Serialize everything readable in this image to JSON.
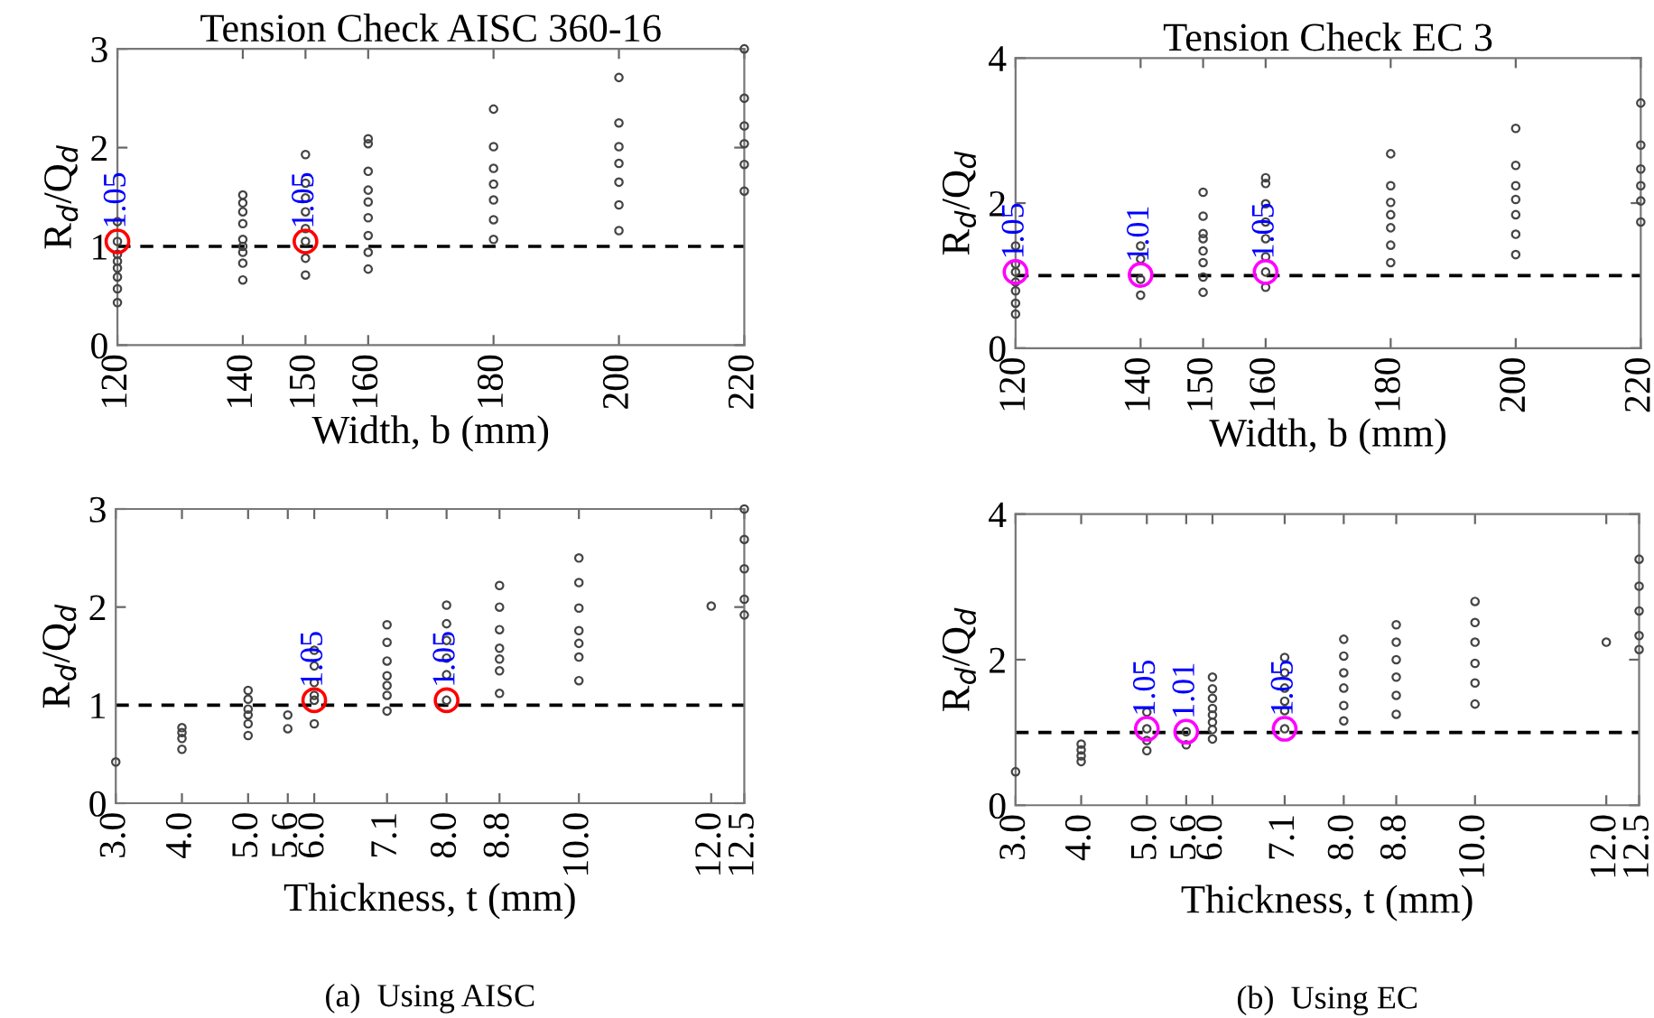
{
  "chart_data": [
    {
      "type": "scatter",
      "title": "Tension Check AISC 360-16",
      "xlabel": "Width, b (mm)",
      "ylabel": "R$_{d}$/Q$_{d}$",
      "xlim": [
        120,
        220
      ],
      "xticks": [
        120,
        140,
        150,
        160,
        180,
        200,
        220
      ],
      "ylim": [
        0,
        3
      ],
      "yticks": [
        0,
        1,
        2,
        3
      ],
      "grid": false,
      "legend": false,
      "series": [
        {
          "color": "#444444",
          "marker": "circle",
          "x": [
            120,
            120,
            120,
            120,
            120,
            120,
            120,
            120,
            140,
            140,
            140,
            140,
            140,
            140,
            140,
            140,
            140,
            150,
            150,
            150,
            150,
            150,
            150,
            150,
            150,
            160,
            160,
            160,
            160,
            160,
            160,
            160,
            160,
            160,
            180,
            180,
            180,
            180,
            180,
            180,
            180,
            200,
            200,
            200,
            200,
            200,
            200,
            200,
            220,
            220,
            220,
            220,
            220,
            220
          ],
          "values": [
            0.43,
            0.57,
            0.69,
            0.78,
            0.85,
            0.92,
            1.05,
            1.25,
            1.52,
            1.44,
            1.35,
            1.23,
            1.07,
            1.0,
            0.94,
            0.83,
            0.66,
            1.93,
            1.64,
            1.49,
            1.35,
            1.18,
            1.05,
            0.88,
            0.71,
            2.09,
            2.04,
            1.76,
            1.57,
            1.45,
            1.29,
            1.11,
            0.94,
            0.77,
            2.39,
            2.01,
            1.79,
            1.63,
            1.47,
            1.27,
            1.07,
            2.71,
            2.25,
            2.01,
            1.84,
            1.65,
            1.42,
            1.16,
            3.0,
            2.5,
            2.22,
            2.04,
            1.83,
            1.56
          ]
        },
        {
          "color": "#ff0000",
          "marker": "circle",
          "x": [
            120,
            150
          ],
          "values": [
            1.05,
            1.05
          ]
        }
      ],
      "ref_lines": [
        {
          "axis": "y",
          "value": 1,
          "color": "#000000",
          "line_style": "dashed"
        }
      ],
      "annotations": [
        {
          "text": "1.05",
          "x": 120,
          "y": 1.05
        },
        {
          "text": "1.05",
          "x": 150,
          "y": 1.05
        }
      ]
    },
    {
      "type": "scatter",
      "title": "Tension Check EC 3",
      "xlabel": "Width, b (mm)",
      "ylabel": "R$_{d}$/Q$_{d}$",
      "xlim": [
        120,
        220
      ],
      "xticks": [
        120,
        140,
        150,
        160,
        180,
        200,
        220
      ],
      "ylim": [
        0,
        4
      ],
      "yticks": [
        0,
        2,
        4
      ],
      "grid": false,
      "legend": false,
      "series": [
        {
          "color": "#444444",
          "marker": "circle",
          "x": [
            120,
            120,
            120,
            120,
            120,
            120,
            120,
            140,
            140,
            140,
            140,
            150,
            150,
            150,
            150,
            150,
            150,
            150,
            150,
            160,
            160,
            160,
            160,
            160,
            160,
            160,
            160,
            180,
            180,
            180,
            180,
            180,
            180,
            180,
            200,
            200,
            200,
            200,
            200,
            200,
            200,
            220,
            220,
            220,
            220,
            220,
            220
          ],
          "values": [
            0.47,
            0.62,
            0.79,
            0.91,
            1.05,
            1.16,
            1.41,
            0.73,
            0.95,
            1.23,
            1.41,
            2.15,
            1.82,
            1.58,
            1.51,
            1.34,
            1.18,
            0.98,
            0.77,
            2.35,
            2.27,
            1.99,
            1.74,
            1.51,
            1.26,
            1.05,
            0.84,
            2.68,
            2.24,
            2.01,
            1.84,
            1.66,
            1.42,
            1.18,
            3.03,
            2.52,
            2.24,
            2.05,
            1.84,
            1.57,
            1.29,
            3.38,
            2.8,
            2.47,
            2.24,
            2.03,
            1.74
          ]
        },
        {
          "color": "#ff00ff",
          "marker": "circle",
          "x": [
            120,
            140,
            160
          ],
          "values": [
            1.05,
            1.01,
            1.05
          ]
        }
      ],
      "ref_lines": [
        {
          "axis": "y",
          "value": 1,
          "color": "#000000",
          "line_style": "dashed"
        }
      ],
      "annotations": [
        {
          "text": "1.05",
          "x": 120,
          "y": 1.05
        },
        {
          "text": "1.01",
          "x": 140,
          "y": 1.01
        },
        {
          "text": "1.05",
          "x": 160,
          "y": 1.05
        }
      ]
    },
    {
      "type": "scatter",
      "xlabel": "Thickness, t (mm)",
      "ylabel": "R$_{d}$/Q$_{d}$",
      "xlim": [
        3.0,
        12.5
      ],
      "xticks": [
        {
          "value": 3.0,
          "label": "3.0"
        },
        {
          "value": 4.0,
          "label": "4.0"
        },
        {
          "value": 5.0,
          "label": "5.0"
        },
        5.6,
        {
          "value": 6.0,
          "label": "6.0"
        },
        7.1,
        {
          "value": 8.0,
          "label": "8.0"
        },
        8.8,
        {
          "value": 10.0,
          "label": "10.0"
        },
        {
          "value": 12.0,
          "label": "12.0"
        },
        12.5
      ],
      "ylim": [
        0,
        3
      ],
      "yticks": [
        0,
        1,
        2,
        3
      ],
      "grid": false,
      "legend": false,
      "series": [
        {
          "color": "#444444",
          "marker": "circle",
          "x": [
            3,
            4,
            4,
            4,
            4,
            5,
            5,
            5,
            5,
            5,
            5,
            5.6,
            5.6,
            6,
            6,
            6,
            6,
            6,
            6,
            7.1,
            7.1,
            7.1,
            7.1,
            7.1,
            7.1,
            7.1,
            8,
            8,
            8,
            8,
            8,
            8,
            8.8,
            8.8,
            8.8,
            8.8,
            8.8,
            8.8,
            8.8,
            10,
            10,
            10,
            10,
            10,
            10,
            10,
            12,
            12.5,
            12.5,
            12.5,
            12.5,
            12.5
          ],
          "values": [
            0.42,
            0.55,
            0.66,
            0.72,
            0.77,
            1.15,
            1.06,
            0.96,
            0.9,
            0.81,
            0.69,
            0.9,
            0.76,
            1.56,
            1.4,
            1.23,
            1.1,
            1.05,
            0.81,
            1.82,
            1.64,
            1.45,
            1.3,
            1.2,
            1.1,
            0.94,
            2.02,
            1.83,
            1.66,
            1.48,
            1.31,
            1.05,
            2.22,
            2.0,
            1.77,
            1.58,
            1.47,
            1.35,
            1.12,
            2.5,
            2.25,
            1.99,
            1.76,
            1.63,
            1.49,
            1.25,
            2.01,
            3.0,
            2.69,
            2.39,
            2.08,
            1.92
          ]
        },
        {
          "color": "#ff0000",
          "marker": "circle",
          "x": [
            6,
            8
          ],
          "values": [
            1.05,
            1.05
          ]
        }
      ],
      "ref_lines": [
        {
          "axis": "y",
          "value": 1,
          "color": "#000000",
          "line_style": "dashed"
        }
      ],
      "annotations": [
        {
          "text": "1.05",
          "x": 6,
          "y": 1.05
        },
        {
          "text": "1.05",
          "x": 8,
          "y": 1.05
        },
        "(a)  Using AISC"
      ]
    },
    {
      "type": "scatter",
      "xlabel": "Thickness, t (mm)",
      "ylabel": "R$_{d}$/Q$_{d}$",
      "xlim": [
        3.0,
        12.5
      ],
      "xticks": [
        {
          "value": 3.0,
          "label": "3.0"
        },
        {
          "value": 4.0,
          "label": "4.0"
        },
        {
          "value": 5.0,
          "label": "5.0"
        },
        5.6,
        {
          "value": 6.0,
          "label": "6.0"
        },
        7.1,
        {
          "value": 8.0,
          "label": "8.0"
        },
        8.8,
        {
          "value": 10.0,
          "label": "10.0"
        },
        {
          "value": 12.0,
          "label": "12.0"
        },
        12.5
      ],
      "ylim": [
        0,
        4
      ],
      "yticks": [
        0,
        2,
        4
      ],
      "grid": false,
      "legend": false,
      "series": [
        {
          "color": "#444444",
          "marker": "circle",
          "x": [
            3,
            4,
            4,
            4,
            4,
            5,
            5,
            5,
            5,
            5.6,
            5.6,
            6,
            6,
            6,
            6,
            6,
            6,
            6,
            6,
            7.1,
            7.1,
            7.1,
            7.1,
            7.1,
            7.1,
            8,
            8,
            8,
            8,
            8,
            8,
            8.8,
            8.8,
            8.8,
            8.8,
            8.8,
            8.8,
            10,
            10,
            10,
            10,
            10,
            10,
            12,
            12.5,
            12.5,
            12.5,
            12.5,
            12.5
          ],
          "values": [
            0.46,
            0.6,
            0.68,
            0.76,
            0.84,
            1.28,
            1.05,
            0.89,
            0.75,
            1.01,
            0.83,
            1.76,
            1.6,
            1.47,
            1.33,
            1.24,
            1.14,
            1.04,
            0.91,
            2.03,
            1.82,
            1.61,
            1.43,
            1.3,
            1.05,
            2.28,
            2.05,
            1.82,
            1.61,
            1.37,
            1.16,
            2.48,
            2.24,
            2.0,
            1.76,
            1.51,
            1.25,
            2.8,
            2.51,
            2.24,
            1.95,
            1.68,
            1.39,
            2.24,
            3.38,
            3.01,
            2.67,
            2.33,
            2.14
          ]
        },
        {
          "color": "#ff00ff",
          "marker": "circle",
          "x": [
            5,
            5.6,
            7.1
          ],
          "values": [
            1.05,
            1.01,
            1.05
          ]
        }
      ],
      "ref_lines": [
        {
          "axis": "y",
          "value": 1,
          "color": "#000000",
          "line_style": "dashed"
        }
      ],
      "annotations": [
        {
          "text": "1.05",
          "x": 5,
          "y": 1.05
        },
        {
          "text": "1.01",
          "x": 5.6,
          "y": 1.01
        },
        {
          "text": "1.05",
          "x": 7.1,
          "y": 1.05
        },
        "(b)  Using EC"
      ]
    }
  ]
}
